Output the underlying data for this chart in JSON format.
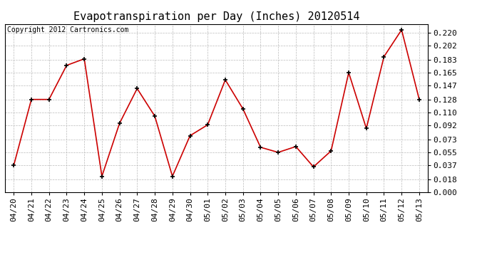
{
  "title": "Evapotranspiration per Day (Inches) 20120514",
  "copyright": "Copyright 2012 Cartronics.com",
  "dates": [
    "04/20",
    "04/21",
    "04/22",
    "04/23",
    "04/24",
    "04/25",
    "04/26",
    "04/27",
    "04/28",
    "04/29",
    "04/30",
    "05/01",
    "05/02",
    "05/03",
    "05/04",
    "05/05",
    "05/06",
    "05/07",
    "05/08",
    "05/09",
    "05/10",
    "05/11",
    "05/12",
    "05/13"
  ],
  "values": [
    0.037,
    0.128,
    0.128,
    0.175,
    0.184,
    0.022,
    0.095,
    0.143,
    0.105,
    0.022,
    0.078,
    0.093,
    0.155,
    0.115,
    0.062,
    0.055,
    0.063,
    0.035,
    0.057,
    0.165,
    0.088,
    0.187,
    0.224,
    0.128
  ],
  "y_ticks": [
    0.0,
    0.018,
    0.037,
    0.055,
    0.073,
    0.092,
    0.11,
    0.128,
    0.147,
    0.165,
    0.183,
    0.202,
    0.22
  ],
  "ylim": [
    0.0,
    0.232
  ],
  "line_color": "#cc0000",
  "marker_color": "#000000",
  "bg_color": "#ffffff",
  "plot_bg_color": "#ffffff",
  "grid_color": "#bbbbbb",
  "title_fontsize": 11,
  "copyright_fontsize": 7,
  "tick_fontsize": 8
}
